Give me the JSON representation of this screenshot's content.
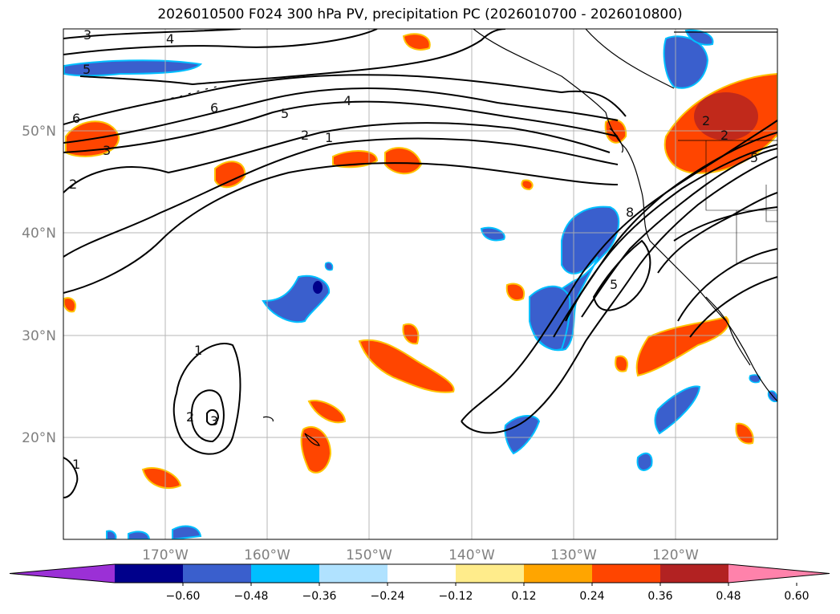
{
  "title": "2026010500 F024 300 hPa PV, precipitation PC (2026010700 - 2026010800)",
  "map": {
    "lon_ticks": [
      "170°W",
      "160°W",
      "150°W",
      "140°W",
      "130°W",
      "120°W"
    ],
    "lat_ticks": [
      "50°N",
      "40°N",
      "30°N",
      "20°N"
    ],
    "extent": {
      "lon": [
        -180,
        -110
      ],
      "lat": [
        10,
        60
      ]
    }
  },
  "colorbar": {
    "labels": [
      "−0.60",
      "−0.48",
      "−0.36",
      "−0.24",
      "−0.12",
      "0.12",
      "0.24",
      "0.36",
      "0.48",
      "0.60"
    ],
    "colors": [
      "#9b30d6",
      "#00008b",
      "#3a5fcd",
      "#00bfff",
      "#b0e2ff",
      "#ffffff",
      "#ffec8b",
      "#ffa500",
      "#ff4500",
      "#b22222",
      "#ff82ab"
    ]
  },
  "contour_labels": [
    "3",
    "4",
    "5",
    "6",
    "5",
    "4",
    "2",
    "1",
    "6",
    "3",
    "2",
    "1",
    "2",
    "3",
    "1",
    "2",
    "8",
    "5",
    "5",
    "2"
  ]
}
